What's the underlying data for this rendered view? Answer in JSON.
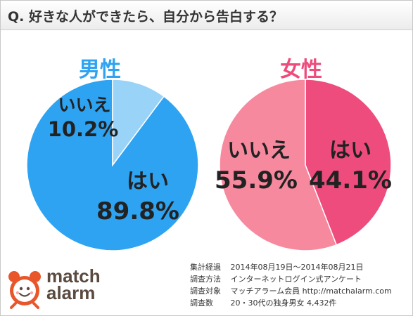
{
  "header": {
    "question": "Q. 好きな人ができたら、自分から告白する？"
  },
  "chart_data": [
    {
      "type": "pie",
      "title": "男性",
      "slices": [
        {
          "label": "はい",
          "value": 89.8,
          "display": "89.8%",
          "color": "#2ea3f2"
        },
        {
          "label": "いいえ",
          "value": 10.2,
          "display": "10.2%",
          "color": "#99d3f7"
        }
      ]
    },
    {
      "type": "pie",
      "title": "女性",
      "slices": [
        {
          "label": "はい",
          "value": 44.1,
          "display": "44.1%",
          "color": "#ee4c7d"
        },
        {
          "label": "いいえ",
          "value": 55.9,
          "display": "55.9%",
          "color": "#f7899f"
        }
      ]
    }
  ],
  "logo": {
    "line1": "match",
    "line2": "alarm"
  },
  "survey_info": [
    {
      "label": "集計経過",
      "value": "2014年08月19日〜2014年08月21日"
    },
    {
      "label": "調査方法",
      "value": "インターネットログイン式アンケート"
    },
    {
      "label": "調査対象",
      "value": "マッチアラーム会員 http://matchalarm.com"
    },
    {
      "label": "調査数",
      "value": "20・30代の独身男女 4,432件"
    }
  ]
}
